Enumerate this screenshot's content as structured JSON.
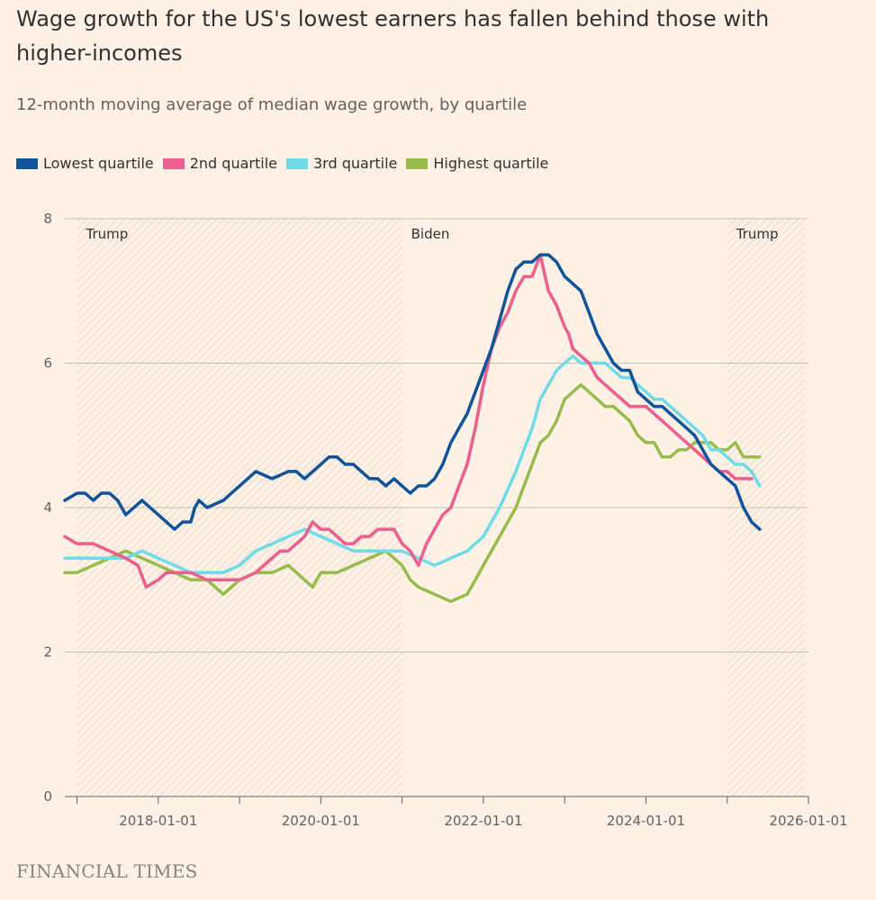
{
  "header": {
    "title": "Wage growth for the US's lowest earners has fallen behind those with higher-incomes",
    "subtitle": "12-month moving average of median wage growth, by quartile"
  },
  "footer": {
    "source": "FINANCIAL TIMES"
  },
  "colors": {
    "background": "#fff1e5",
    "lowest": "#0f5499",
    "second": "#eb5e8d",
    "third": "#70dbe8",
    "highest": "#96bc4c",
    "grid": "#c9beb3"
  },
  "chart_data": {
    "type": "line",
    "title": "Wage growth for the US's lowest earners has fallen behind those with higher-incomes",
    "subtitle": "12-month moving average of median wage growth, by quartile",
    "xlabel": "",
    "ylabel": "",
    "xlim": [
      "2017-01-01",
      "2026-01-01"
    ],
    "ylim": [
      0,
      8
    ],
    "yticks": [
      0,
      2,
      4,
      6,
      8
    ],
    "xticks": [
      "2018-01-01",
      "2020-01-01",
      "2022-01-01",
      "2024-01-01",
      "2026-01-01"
    ],
    "legend_position": "top-left",
    "grid": true,
    "eras": [
      {
        "label": "Trump",
        "start": "2017-01-01",
        "end": "2021-01-01",
        "shaded": true
      },
      {
        "label": "Biden",
        "start": "2021-01-01",
        "end": "2025-01-01",
        "shaded": false
      },
      {
        "label": "Trump",
        "start": "2025-01-01",
        "end": "2026-01-01",
        "shaded": true
      }
    ],
    "series": [
      {
        "name": "Lowest quartile",
        "key": "lowest",
        "x": [
          2016.85,
          2017.0,
          2017.1,
          2017.2,
          2017.3,
          2017.4,
          2017.5,
          2017.6,
          2017.7,
          2017.8,
          2017.9,
          2018.0,
          2018.1,
          2018.2,
          2018.3,
          2018.4,
          2018.45,
          2018.5,
          2018.6,
          2018.8,
          2019.0,
          2019.1,
          2019.2,
          2019.4,
          2019.6,
          2019.7,
          2019.8,
          2019.9,
          2020.0,
          2020.1,
          2020.2,
          2020.3,
          2020.4,
          2020.5,
          2020.6,
          2020.7,
          2020.8,
          2020.9,
          2021.0,
          2021.1,
          2021.2,
          2021.3,
          2021.4,
          2021.5,
          2021.6,
          2021.7,
          2021.8,
          2021.9,
          2022.0,
          2022.1,
          2022.2,
          2022.3,
          2022.4,
          2022.5,
          2022.6,
          2022.7,
          2022.8,
          2022.9,
          2023.0,
          2023.1,
          2023.2,
          2023.3,
          2023.4,
          2023.5,
          2023.6,
          2023.7,
          2023.8,
          2023.9,
          2024.0,
          2024.1,
          2024.2,
          2024.3,
          2024.4,
          2024.5,
          2024.6,
          2024.7,
          2024.8,
          2024.9,
          2025.0,
          2025.1,
          2025.2,
          2025.3,
          2025.4
        ],
        "values": [
          4.1,
          4.2,
          4.2,
          4.1,
          4.2,
          4.2,
          4.1,
          3.9,
          4.0,
          4.1,
          4.0,
          3.9,
          3.8,
          3.7,
          3.8,
          3.8,
          4.0,
          4.1,
          4.0,
          4.1,
          4.3,
          4.4,
          4.5,
          4.4,
          4.5,
          4.5,
          4.4,
          4.5,
          4.6,
          4.7,
          4.7,
          4.6,
          4.6,
          4.5,
          4.4,
          4.4,
          4.3,
          4.4,
          4.3,
          4.2,
          4.3,
          4.3,
          4.4,
          4.6,
          4.9,
          5.1,
          5.3,
          5.6,
          5.9,
          6.2,
          6.6,
          7.0,
          7.3,
          7.4,
          7.4,
          7.5,
          7.5,
          7.4,
          7.2,
          7.1,
          7.0,
          6.7,
          6.4,
          6.2,
          6.0,
          5.9,
          5.9,
          5.6,
          5.5,
          5.4,
          5.4,
          5.3,
          5.2,
          5.1,
          5.0,
          4.8,
          4.6,
          4.5,
          4.4,
          4.3,
          4.0,
          3.8,
          3.7
        ]
      },
      {
        "name": "2nd quartile",
        "key": "second",
        "x": [
          2016.85,
          2017.0,
          2017.2,
          2017.4,
          2017.6,
          2017.75,
          2017.85,
          2018.0,
          2018.1,
          2018.2,
          2018.3,
          2018.4,
          2018.6,
          2018.8,
          2019.0,
          2019.2,
          2019.4,
          2019.5,
          2019.6,
          2019.8,
          2019.9,
          2020.0,
          2020.1,
          2020.2,
          2020.3,
          2020.4,
          2020.5,
          2020.6,
          2020.7,
          2020.8,
          2020.9,
          2021.0,
          2021.1,
          2021.2,
          2021.3,
          2021.4,
          2021.5,
          2021.6,
          2021.7,
          2021.8,
          2021.9,
          2022.0,
          2022.1,
          2022.2,
          2022.3,
          2022.4,
          2022.5,
          2022.6,
          2022.7,
          2022.8,
          2022.9,
          2023.0,
          2023.05,
          2023.1,
          2023.2,
          2023.3,
          2023.4,
          2023.5,
          2023.6,
          2023.7,
          2023.8,
          2023.9,
          2024.0,
          2024.1,
          2024.2,
          2024.3,
          2024.4,
          2024.5,
          2024.6,
          2024.7,
          2024.8,
          2024.9,
          2025.0,
          2025.1,
          2025.2,
          2025.3
        ],
        "values": [
          3.6,
          3.5,
          3.5,
          3.4,
          3.3,
          3.2,
          2.9,
          3.0,
          3.1,
          3.1,
          3.1,
          3.1,
          3.0,
          3.0,
          3.0,
          3.1,
          3.3,
          3.4,
          3.4,
          3.6,
          3.8,
          3.7,
          3.7,
          3.6,
          3.5,
          3.5,
          3.6,
          3.6,
          3.7,
          3.7,
          3.7,
          3.5,
          3.4,
          3.2,
          3.5,
          3.7,
          3.9,
          4.0,
          4.3,
          4.6,
          5.1,
          5.7,
          6.2,
          6.5,
          6.7,
          7.0,
          7.2,
          7.2,
          7.5,
          7.0,
          6.8,
          6.5,
          6.4,
          6.2,
          6.1,
          6.0,
          5.8,
          5.7,
          5.6,
          5.5,
          5.4,
          5.4,
          5.4,
          5.3,
          5.2,
          5.1,
          5.0,
          4.9,
          4.8,
          4.7,
          4.6,
          4.5,
          4.5,
          4.4,
          4.4,
          4.4
        ]
      },
      {
        "name": "3rd quartile",
        "key": "third",
        "x": [
          2016.85,
          2017.0,
          2017.2,
          2017.4,
          2017.6,
          2017.8,
          2018.0,
          2018.2,
          2018.4,
          2018.6,
          2018.8,
          2019.0,
          2019.2,
          2019.4,
          2019.6,
          2019.8,
          2020.0,
          2020.2,
          2020.4,
          2020.6,
          2020.8,
          2021.0,
          2021.2,
          2021.4,
          2021.6,
          2021.8,
          2022.0,
          2022.2,
          2022.4,
          2022.5,
          2022.6,
          2022.7,
          2022.8,
          2022.9,
          2023.0,
          2023.1,
          2023.2,
          2023.3,
          2023.4,
          2023.5,
          2023.6,
          2023.7,
          2023.8,
          2023.9,
          2024.0,
          2024.1,
          2024.2,
          2024.3,
          2024.4,
          2024.5,
          2024.6,
          2024.7,
          2024.8,
          2024.9,
          2025.0,
          2025.1,
          2025.2,
          2025.3,
          2025.4
        ],
        "values": [
          3.3,
          3.3,
          3.3,
          3.3,
          3.3,
          3.4,
          3.3,
          3.2,
          3.1,
          3.1,
          3.1,
          3.2,
          3.4,
          3.5,
          3.6,
          3.7,
          3.6,
          3.5,
          3.4,
          3.4,
          3.4,
          3.4,
          3.3,
          3.2,
          3.3,
          3.4,
          3.6,
          4.0,
          4.5,
          4.8,
          5.1,
          5.5,
          5.7,
          5.9,
          6.0,
          6.1,
          6.0,
          6.0,
          6.0,
          6.0,
          5.9,
          5.8,
          5.8,
          5.7,
          5.6,
          5.5,
          5.5,
          5.4,
          5.3,
          5.2,
          5.1,
          5.0,
          4.8,
          4.8,
          4.7,
          4.6,
          4.6,
          4.5,
          4.3
        ]
      },
      {
        "name": "Highest quartile",
        "key": "highest",
        "x": [
          2016.85,
          2017.0,
          2017.2,
          2017.4,
          2017.6,
          2017.8,
          2018.0,
          2018.2,
          2018.4,
          2018.6,
          2018.8,
          2019.0,
          2019.2,
          2019.4,
          2019.6,
          2019.7,
          2019.8,
          2019.9,
          2020.0,
          2020.2,
          2020.4,
          2020.6,
          2020.8,
          2020.9,
          2021.0,
          2021.1,
          2021.2,
          2021.4,
          2021.6,
          2021.8,
          2021.9,
          2022.0,
          2022.1,
          2022.2,
          2022.3,
          2022.4,
          2022.5,
          2022.6,
          2022.7,
          2022.8,
          2022.9,
          2023.0,
          2023.1,
          2023.2,
          2023.3,
          2023.4,
          2023.5,
          2023.6,
          2023.7,
          2023.8,
          2023.9,
          2024.0,
          2024.1,
          2024.2,
          2024.3,
          2024.4,
          2024.5,
          2024.6,
          2024.7,
          2024.8,
          2024.9,
          2025.0,
          2025.1,
          2025.2,
          2025.3,
          2025.4
        ],
        "values": [
          3.1,
          3.1,
          3.2,
          3.3,
          3.4,
          3.3,
          3.2,
          3.1,
          3.0,
          3.0,
          2.8,
          3.0,
          3.1,
          3.1,
          3.2,
          3.1,
          3.0,
          2.9,
          3.1,
          3.1,
          3.2,
          3.3,
          3.4,
          3.3,
          3.2,
          3.0,
          2.9,
          2.8,
          2.7,
          2.8,
          3.0,
          3.2,
          3.4,
          3.6,
          3.8,
          4.0,
          4.3,
          4.6,
          4.9,
          5.0,
          5.2,
          5.5,
          5.6,
          5.7,
          5.6,
          5.5,
          5.4,
          5.4,
          5.3,
          5.2,
          5.0,
          4.9,
          4.9,
          4.7,
          4.7,
          4.8,
          4.8,
          4.9,
          4.9,
          4.9,
          4.8,
          4.8,
          4.9,
          4.7,
          4.7,
          4.7
        ]
      }
    ]
  }
}
